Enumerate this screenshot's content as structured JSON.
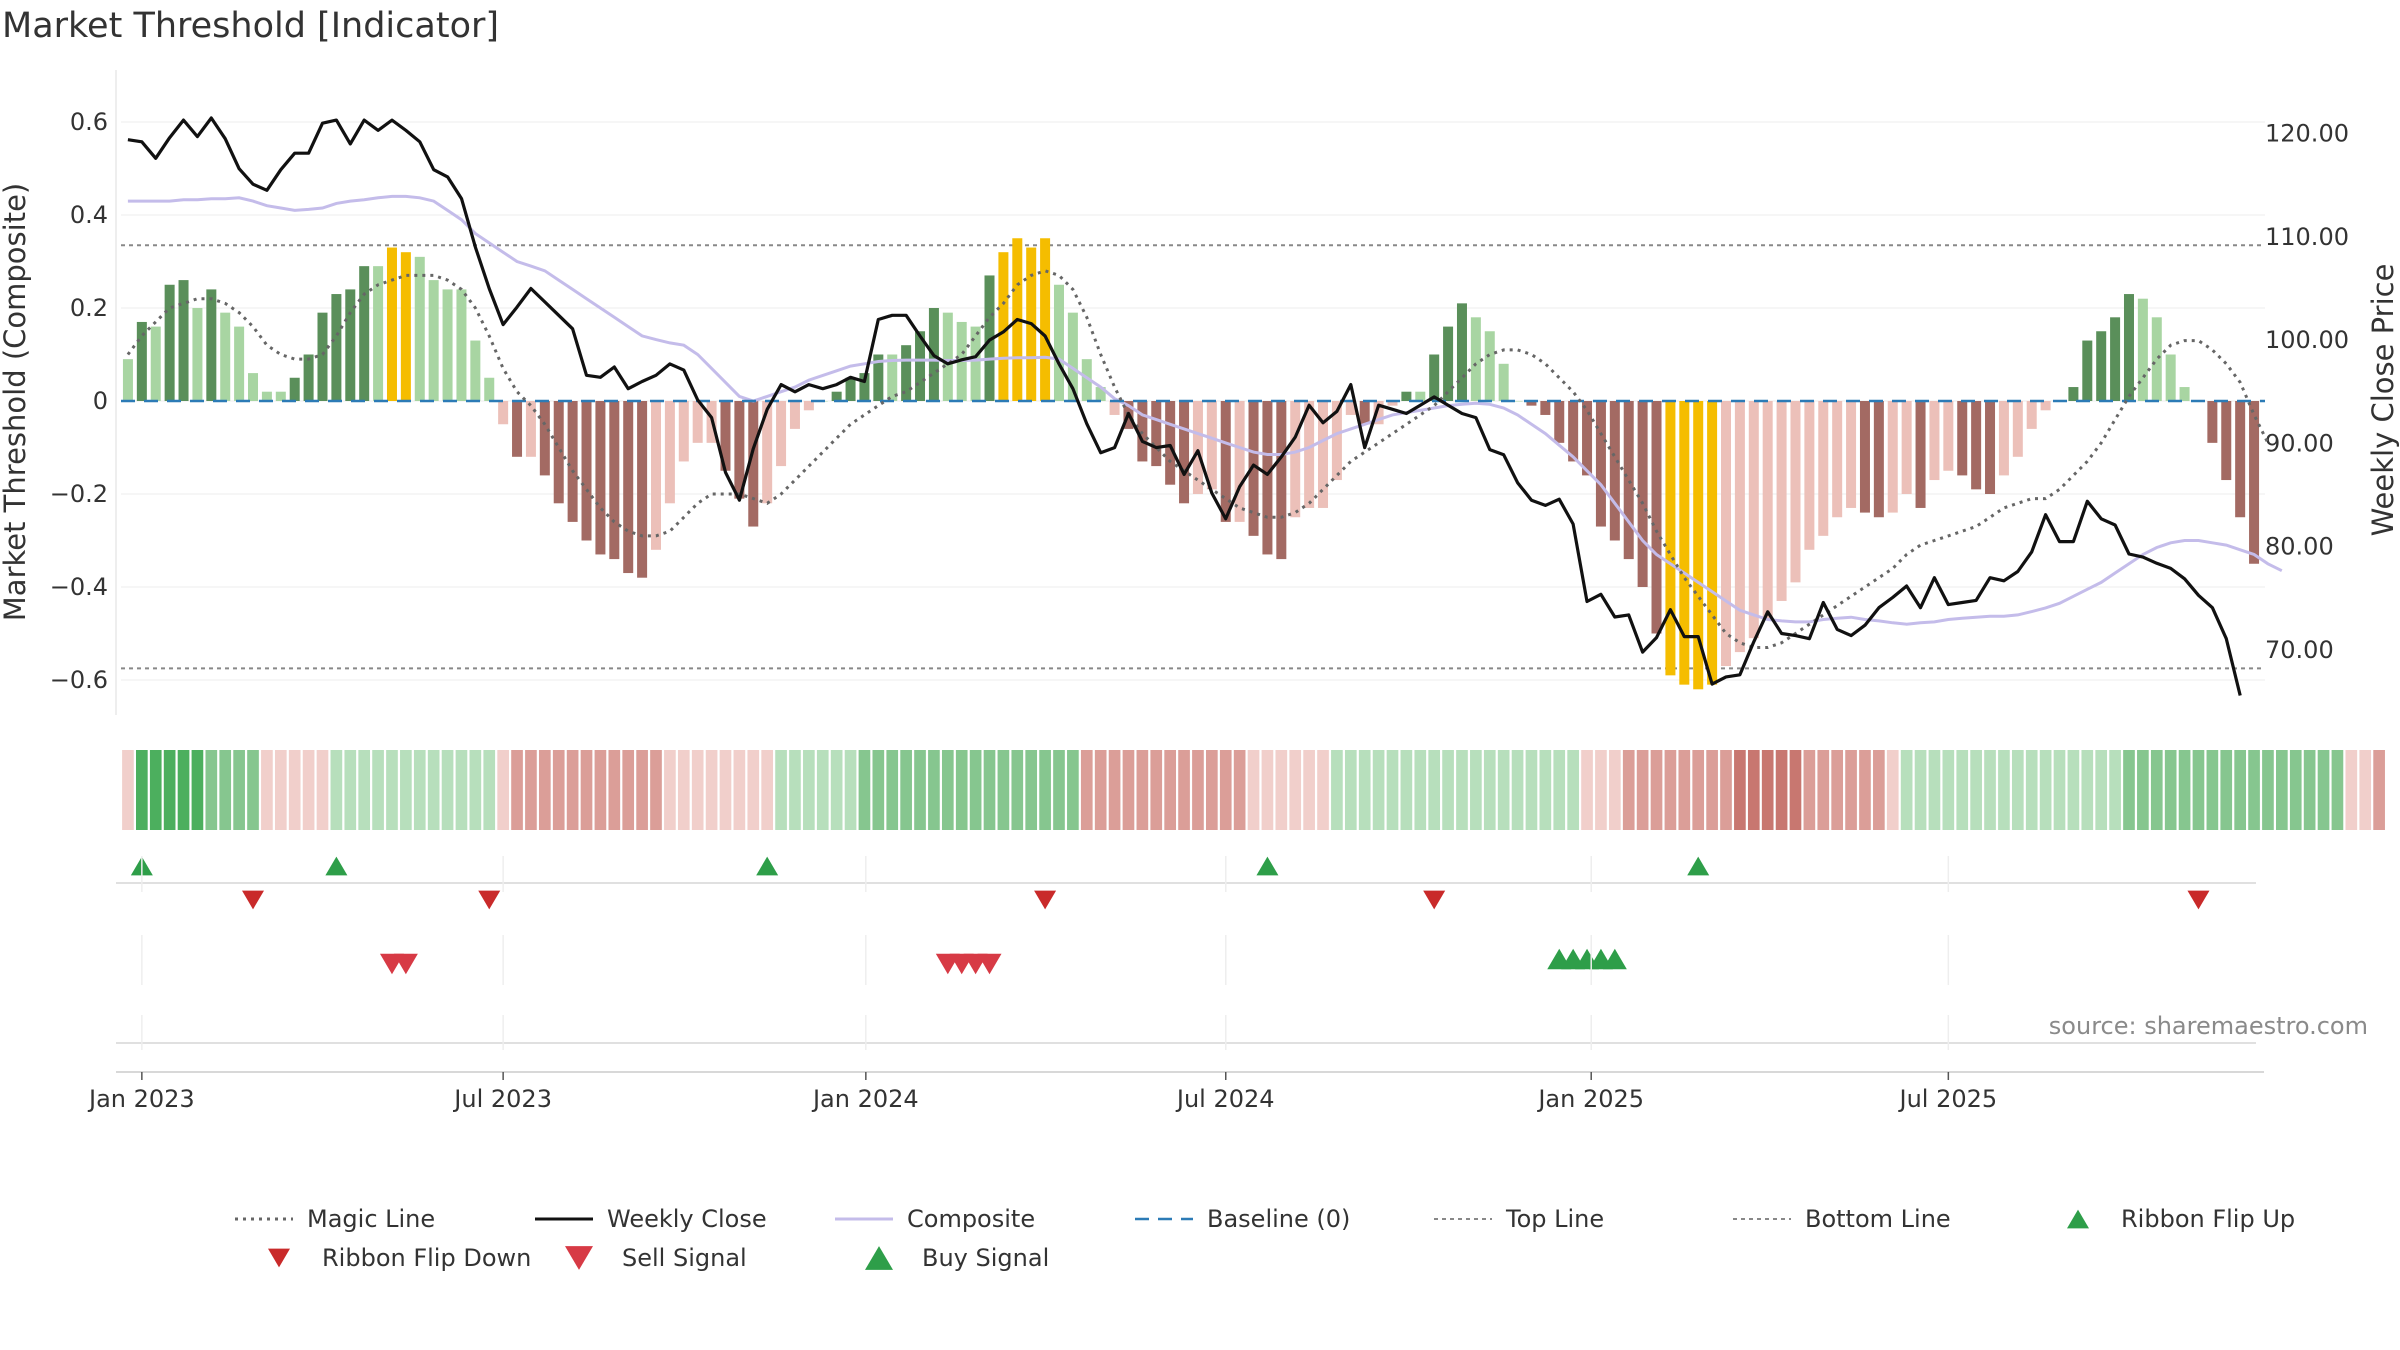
{
  "chart_data": {
    "type": "bar",
    "title": "Market Threshold [Indicator]",
    "ylabel": "Market Threshold (Composite)",
    "y2label": "Weekly Close Price",
    "ylim": [
      -0.7,
      0.7
    ],
    "y2lim": [
      63,
      124
    ],
    "yticks": [
      0.6,
      0.4,
      0.2,
      0,
      -0.2,
      -0.4,
      -0.6
    ],
    "ytick_labels": [
      "0.6",
      "0.4",
      "0.2",
      "0",
      "−0.2",
      "−0.4",
      "−0.6"
    ],
    "y2ticks": [
      120,
      110,
      100,
      90,
      80,
      70
    ],
    "y2tick_labels": [
      "120.00",
      "110.00",
      "100.00",
      "90.00",
      "80.00",
      "70.00"
    ],
    "x_start": "2022-12-26",
    "x_end": "2025-10-20",
    "x_ticks": [
      {
        "week": 1,
        "label": "Jan 2023"
      },
      {
        "week": 27,
        "label": "Jul 2023"
      },
      {
        "week": 53.1,
        "label": "Jan 2024"
      },
      {
        "week": 79,
        "label": "Jul 2024"
      },
      {
        "week": 105.3,
        "label": "Jan 2025"
      },
      {
        "week": 131,
        "label": "Jul 2025"
      }
    ],
    "top_line": 0.335,
    "bottom_line": -0.575,
    "colors": {
      "bull_strong": "#5a8f5a",
      "bull_weak": "#a8d5a2",
      "bear_strong": "#a36a63",
      "bear_weak": "#ecc0b9",
      "extreme": "#f5bd00",
      "close": "#111111",
      "composite": "#c4bcea",
      "magic": "#666666",
      "baseline": "#2c7bb6",
      "threshold": "#888888",
      "buy": "#2e9e49",
      "sell": "#d73a45",
      "flip_down": "#c92a2a"
    },
    "series": [
      {
        "name": "Composite bars (weekly)",
        "values": [
          0.09,
          0.17,
          0.16,
          0.25,
          0.26,
          0.2,
          0.24,
          0.19,
          0.16,
          0.06,
          0.02,
          0.02,
          0.05,
          0.1,
          0.19,
          0.23,
          0.24,
          0.29,
          0.29,
          0.33,
          0.32,
          0.31,
          0.26,
          0.24,
          0.24,
          0.13,
          0.05,
          -0.05,
          -0.12,
          -0.12,
          -0.16,
          -0.22,
          -0.26,
          -0.3,
          -0.33,
          -0.34,
          -0.37,
          -0.38,
          -0.32,
          -0.22,
          -0.13,
          -0.09,
          -0.09,
          -0.15,
          -0.21,
          -0.27,
          -0.22,
          -0.14,
          -0.06,
          -0.02,
          0.0,
          0.02,
          0.05,
          0.06,
          0.1,
          0.1,
          0.12,
          0.15,
          0.2,
          0.19,
          0.17,
          0.16,
          0.27,
          0.32,
          0.35,
          0.33,
          0.35,
          0.25,
          0.19,
          0.09,
          0.03,
          -0.03,
          -0.06,
          -0.13,
          -0.14,
          -0.18,
          -0.22,
          -0.2,
          -0.19,
          -0.26,
          -0.26,
          -0.29,
          -0.33,
          -0.34,
          -0.25,
          -0.23,
          -0.23,
          -0.17,
          -0.03,
          -0.05,
          -0.05,
          -0.01,
          0.02,
          0.02,
          0.1,
          0.16,
          0.21,
          0.18,
          0.15,
          0.08,
          0.0,
          -0.01,
          -0.03,
          -0.09,
          -0.13,
          -0.16,
          -0.27,
          -0.3,
          -0.34,
          -0.4,
          -0.5,
          -0.59,
          -0.61,
          -0.62,
          -0.61,
          -0.57,
          -0.54,
          -0.51,
          -0.47,
          -0.43,
          -0.39,
          -0.32,
          -0.29,
          -0.25,
          -0.23,
          -0.24,
          -0.25,
          -0.24,
          -0.2,
          -0.23,
          -0.17,
          -0.15,
          -0.16,
          -0.19,
          -0.2,
          -0.16,
          -0.12,
          -0.06,
          -0.02,
          0.0,
          0.03,
          0.13,
          0.15,
          0.18,
          0.23,
          0.22,
          0.18,
          0.1,
          0.03,
          0.0,
          -0.09,
          -0.17,
          -0.25,
          -0.35
        ]
      },
      {
        "name": "Weekly Close",
        "values": [
          119.3,
          119.1,
          117.5,
          119.5,
          121.2,
          119.6,
          121.4,
          119.4,
          116.5,
          115.0,
          114.4,
          116.4,
          118.0,
          118.0,
          120.9,
          121.2,
          118.9,
          121.2,
          120.2,
          121.2,
          120.2,
          119.1,
          116.4,
          115.7,
          113.6,
          108.9,
          104.9,
          101.4,
          103.1,
          104.9,
          103.6,
          102.3,
          101.0,
          96.5,
          96.3,
          97.3,
          95.2,
          95.9,
          96.5,
          97.6,
          97.0,
          94.1,
          92.4,
          87.1,
          84.4,
          89.4,
          93.2,
          95.6,
          94.9,
          95.6,
          95.2,
          95.6,
          96.3,
          95.9,
          101.9,
          102.3,
          102.3,
          100.3,
          98.4,
          97.6,
          98.0,
          98.3,
          99.9,
          100.7,
          101.9,
          101.5,
          100.3,
          97.6,
          95.2,
          91.8,
          89.0,
          89.5,
          92.8,
          90.1,
          89.5,
          89.7,
          86.9,
          89.2,
          85.1,
          82.6,
          85.7,
          87.8,
          86.9,
          88.6,
          90.5,
          93.6,
          91.9,
          93.0,
          95.6,
          89.5,
          93.6,
          93.2,
          92.8,
          93.6,
          94.4,
          93.6,
          92.8,
          92.4,
          89.3,
          88.8,
          86.1,
          84.4,
          83.9,
          84.5,
          82.1,
          74.6,
          75.3,
          73.1,
          73.3,
          69.7,
          71.1,
          73.8,
          71.2,
          71.2,
          66.6,
          67.3,
          67.5,
          70.7,
          73.6,
          71.5,
          71.3,
          71.0,
          74.5,
          71.9,
          71.3,
          72.3,
          74.0,
          75.0,
          76.1,
          74.0,
          76.9,
          74.3,
          74.5,
          74.7,
          76.9,
          76.6,
          77.5,
          79.4,
          83.0,
          80.4,
          80.4,
          84.3,
          82.6,
          82.0,
          79.2,
          78.9,
          78.3,
          77.8,
          76.8,
          75.2,
          74.0,
          71.0,
          65.5
        ]
      },
      {
        "name": "Composite",
        "values": [
          0.43,
          0.43,
          0.43,
          0.43,
          0.433,
          0.433,
          0.435,
          0.435,
          0.437,
          0.43,
          0.42,
          0.415,
          0.41,
          0.412,
          0.415,
          0.425,
          0.43,
          0.433,
          0.437,
          0.44,
          0.44,
          0.437,
          0.43,
          0.41,
          0.39,
          0.36,
          0.34,
          0.32,
          0.3,
          0.29,
          0.28,
          0.26,
          0.24,
          0.22,
          0.2,
          0.18,
          0.16,
          0.14,
          0.132,
          0.125,
          0.12,
          0.1,
          0.07,
          0.04,
          0.01,
          0.0,
          0.01,
          0.02,
          0.03,
          0.045,
          0.055,
          0.065,
          0.075,
          0.08,
          0.085,
          0.087,
          0.088,
          0.088,
          0.088,
          0.087,
          0.087,
          0.088,
          0.09,
          0.092,
          0.093,
          0.093,
          0.094,
          0.09,
          0.07,
          0.05,
          0.03,
          0.005,
          -0.01,
          -0.03,
          -0.04,
          -0.05,
          -0.06,
          -0.07,
          -0.08,
          -0.09,
          -0.1,
          -0.11,
          -0.115,
          -0.115,
          -0.11,
          -0.1,
          -0.085,
          -0.07,
          -0.06,
          -0.05,
          -0.04,
          -0.03,
          -0.025,
          -0.02,
          -0.015,
          -0.01,
          -0.007,
          -0.005,
          -0.007,
          -0.015,
          -0.03,
          -0.05,
          -0.07,
          -0.095,
          -0.12,
          -0.15,
          -0.18,
          -0.22,
          -0.26,
          -0.3,
          -0.33,
          -0.35,
          -0.37,
          -0.39,
          -0.41,
          -0.43,
          -0.45,
          -0.46,
          -0.47,
          -0.473,
          -0.475,
          -0.475,
          -0.47,
          -0.467,
          -0.465,
          -0.47,
          -0.473,
          -0.477,
          -0.48,
          -0.477,
          -0.475,
          -0.47,
          -0.467,
          -0.465,
          -0.463,
          -0.463,
          -0.46,
          -0.453,
          -0.445,
          -0.435,
          -0.42,
          -0.405,
          -0.39,
          -0.37,
          -0.35,
          -0.33,
          -0.315,
          -0.305,
          -0.3,
          -0.3,
          -0.305,
          -0.31,
          -0.32,
          -0.33,
          -0.35,
          -0.365
        ]
      },
      {
        "name": "Magic Line",
        "values": [
          0.1,
          0.14,
          0.17,
          0.2,
          0.21,
          0.22,
          0.22,
          0.21,
          0.19,
          0.16,
          0.12,
          0.1,
          0.09,
          0.09,
          0.1,
          0.14,
          0.19,
          0.23,
          0.25,
          0.26,
          0.27,
          0.27,
          0.27,
          0.26,
          0.24,
          0.2,
          0.14,
          0.07,
          0.02,
          -0.01,
          -0.05,
          -0.1,
          -0.15,
          -0.19,
          -0.23,
          -0.26,
          -0.28,
          -0.29,
          -0.29,
          -0.28,
          -0.25,
          -0.22,
          -0.2,
          -0.2,
          -0.2,
          -0.21,
          -0.22,
          -0.2,
          -0.17,
          -0.14,
          -0.11,
          -0.08,
          -0.05,
          -0.03,
          -0.01,
          0.01,
          0.02,
          0.04,
          0.06,
          0.08,
          0.1,
          0.14,
          0.18,
          0.21,
          0.25,
          0.27,
          0.28,
          0.27,
          0.24,
          0.18,
          0.1,
          0.03,
          -0.03,
          -0.07,
          -0.1,
          -0.13,
          -0.15,
          -0.17,
          -0.19,
          -0.21,
          -0.23,
          -0.24,
          -0.25,
          -0.25,
          -0.24,
          -0.22,
          -0.19,
          -0.16,
          -0.13,
          -0.11,
          -0.09,
          -0.07,
          -0.05,
          -0.03,
          -0.01,
          0.02,
          0.05,
          0.08,
          0.1,
          0.11,
          0.11,
          0.1,
          0.08,
          0.05,
          0.02,
          -0.02,
          -0.07,
          -0.12,
          -0.17,
          -0.22,
          -0.28,
          -0.33,
          -0.38,
          -0.42,
          -0.46,
          -0.5,
          -0.52,
          -0.53,
          -0.53,
          -0.52,
          -0.5,
          -0.48,
          -0.46,
          -0.44,
          -0.42,
          -0.4,
          -0.38,
          -0.36,
          -0.33,
          -0.31,
          -0.3,
          -0.29,
          -0.28,
          -0.27,
          -0.25,
          -0.23,
          -0.22,
          -0.21,
          -0.21,
          -0.19,
          -0.16,
          -0.13,
          -0.09,
          -0.04,
          0.01,
          0.05,
          0.09,
          0.12,
          0.13,
          0.13,
          0.11,
          0.08,
          0.04,
          -0.03,
          -0.09
        ]
      },
      {
        "name": "Ribbon",
        "values": [
          -1,
          3,
          3,
          3,
          3,
          3,
          2,
          2,
          2,
          2,
          -1,
          -1,
          -1,
          -1,
          -1,
          1,
          1,
          1,
          1,
          1,
          1,
          1,
          1,
          1,
          1,
          1,
          1,
          -1,
          -2,
          -2,
          -2,
          -2,
          -2,
          -2,
          -2,
          -2,
          -2,
          -2,
          -2,
          -1,
          -1,
          -1,
          -1,
          -1,
          -1,
          -1,
          -1,
          1,
          1,
          1,
          1,
          1,
          1,
          2,
          2,
          2,
          2,
          2,
          2,
          2,
          2,
          2,
          2,
          2,
          2,
          2,
          2,
          2,
          2,
          -2,
          -2,
          -2,
          -2,
          -2,
          -2,
          -2,
          -2,
          -2,
          -2,
          -2,
          -2,
          -1,
          -1,
          -1,
          -1,
          -1,
          -1,
          1,
          1,
          1,
          1,
          1,
          1,
          1,
          1,
          1,
          1,
          1,
          1,
          1,
          1,
          1,
          1,
          1,
          1,
          -1,
          -1,
          -1,
          -2,
          -2,
          -2,
          -2,
          -2,
          -2,
          -2,
          -2,
          -3,
          -3,
          -3,
          -3,
          -3,
          -2,
          -2,
          -2,
          -2,
          -2,
          -2,
          -1,
          1,
          1,
          1,
          1,
          1,
          1,
          1,
          1,
          1,
          1,
          1,
          1,
          1,
          1,
          1,
          1,
          2,
          2,
          2,
          2,
          2,
          2,
          2,
          2,
          2,
          2,
          2,
          2,
          2,
          2,
          2,
          2,
          -1,
          -1,
          -2
        ]
      }
    ],
    "ribbon_flip_up": [
      1,
      15,
      46,
      82,
      113
    ],
    "ribbon_flip_down": [
      9,
      26,
      66,
      94,
      149
    ],
    "sell_signal": [
      19,
      20,
      59,
      60,
      61,
      62
    ],
    "buy_signal": [
      103,
      104,
      105,
      106,
      107
    ],
    "source_note": "source: sharemaestro.com",
    "legend": [
      {
        "label": "Magic Line",
        "kind": "dot-line"
      },
      {
        "label": "Weekly Close",
        "kind": "solid-dark"
      },
      {
        "label": "Composite",
        "kind": "solid-lav"
      },
      {
        "label": "Baseline (0)",
        "kind": "dash-blue"
      },
      {
        "label": "Top Line",
        "kind": "dash-gray"
      },
      {
        "label": "Bottom Line",
        "kind": "dash-gray"
      },
      {
        "label": "Ribbon Flip Up",
        "kind": "tri-up-green"
      },
      {
        "label": "Ribbon Flip Down",
        "kind": "tri-down-red"
      },
      {
        "label": "Sell Signal",
        "kind": "tri-down-sell"
      },
      {
        "label": "Buy Signal",
        "kind": "tri-up-buy"
      }
    ]
  }
}
